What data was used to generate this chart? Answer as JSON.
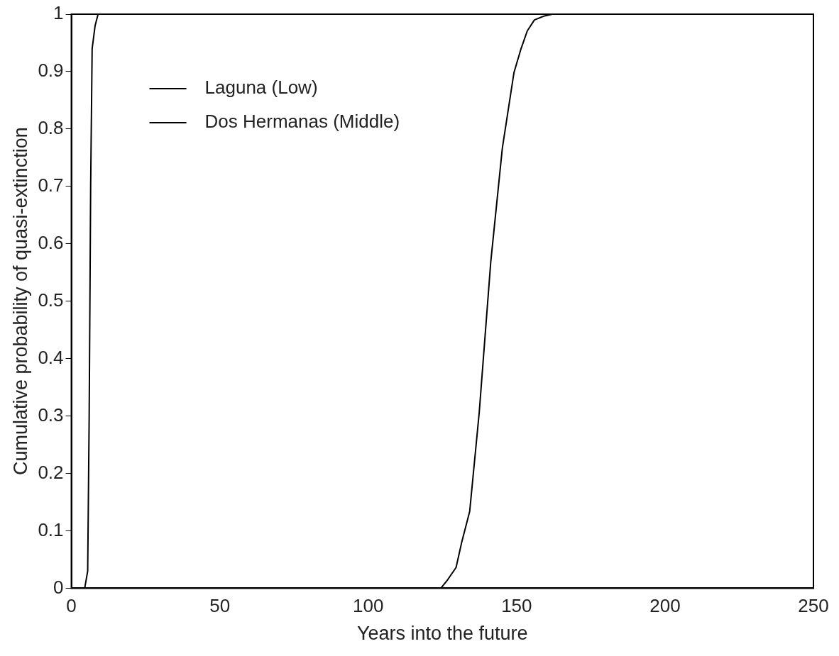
{
  "chart_data": {
    "type": "line",
    "xlabel": "Years into the future",
    "ylabel": "Cumulative probability of quasi-extinction",
    "xlim": [
      0,
      250
    ],
    "xticks": [
      0,
      50,
      100,
      150,
      200,
      250
    ],
    "ylim": [
      0,
      1
    ],
    "yticks": [
      0,
      0.1,
      0.2,
      0.3,
      0.4,
      0.5,
      0.6,
      0.7,
      0.8,
      0.9,
      1
    ],
    "legend": "top left",
    "grid": false,
    "marker": "none",
    "line_style": "solid",
    "series": [
      {
        "name": "Laguna (Low)",
        "color": "#000000",
        "x": [
          0,
          4.5,
          5.5,
          6,
          6.5,
          7,
          8,
          9,
          250
        ],
        "values": [
          0,
          0,
          0.03,
          0.3,
          0.7,
          0.94,
          0.98,
          1,
          1
        ]
      },
      {
        "name": "Dos Hermanas (Middle)",
        "color": "#000000",
        "x": [
          0,
          124.5,
          126.8,
          129.6,
          131.5,
          134.2,
          137.4,
          141.3,
          145.2,
          149.1,
          151.5,
          153.6,
          156,
          159.4,
          162,
          250
        ],
        "values": [
          0,
          0,
          0.015,
          0.036,
          0.08,
          0.134,
          0.306,
          0.569,
          0.767,
          0.898,
          0.94,
          0.971,
          0.99,
          0.997,
          1,
          1
        ]
      }
    ]
  }
}
